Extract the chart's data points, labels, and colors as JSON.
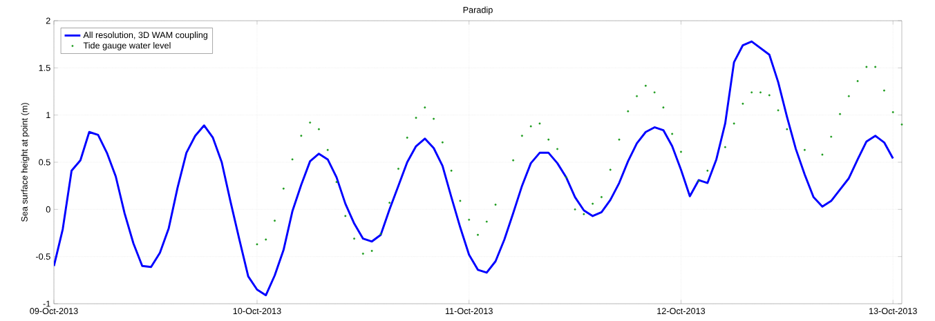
{
  "chart_data": {
    "type": "line",
    "title": "Paradip",
    "ylabel": "Sea surface height at point (m)",
    "x": [
      "2013-10-09T01:00",
      "2013-10-09T02:00",
      "2013-10-09T03:00",
      "2013-10-09T04:00",
      "2013-10-09T05:00",
      "2013-10-09T06:00",
      "2013-10-09T07:00",
      "2013-10-09T08:00",
      "2013-10-09T09:00",
      "2013-10-09T10:00",
      "2013-10-09T11:00",
      "2013-10-09T12:00",
      "2013-10-09T13:00",
      "2013-10-09T14:00",
      "2013-10-09T15:00",
      "2013-10-09T16:00",
      "2013-10-09T17:00",
      "2013-10-09T18:00",
      "2013-10-09T19:00",
      "2013-10-09T20:00",
      "2013-10-09T21:00",
      "2013-10-09T22:00",
      "2013-10-09T23:00",
      "2013-10-10T00:00",
      "2013-10-10T01:00",
      "2013-10-10T02:00",
      "2013-10-10T03:00",
      "2013-10-10T04:00",
      "2013-10-10T05:00",
      "2013-10-10T06:00",
      "2013-10-10T07:00",
      "2013-10-10T08:00",
      "2013-10-10T09:00",
      "2013-10-10T10:00",
      "2013-10-10T11:00",
      "2013-10-10T12:00",
      "2013-10-10T13:00",
      "2013-10-10T14:00",
      "2013-10-10T15:00",
      "2013-10-10T16:00",
      "2013-10-10T17:00",
      "2013-10-10T18:00",
      "2013-10-10T19:00",
      "2013-10-10T20:00",
      "2013-10-10T21:00",
      "2013-10-10T22:00",
      "2013-10-10T23:00",
      "2013-10-11T00:00",
      "2013-10-11T01:00",
      "2013-10-11T02:00",
      "2013-10-11T03:00",
      "2013-10-11T04:00",
      "2013-10-11T05:00",
      "2013-10-11T06:00",
      "2013-10-11T07:00",
      "2013-10-11T08:00",
      "2013-10-11T09:00",
      "2013-10-11T10:00",
      "2013-10-11T11:00",
      "2013-10-11T12:00",
      "2013-10-11T13:00",
      "2013-10-11T14:00",
      "2013-10-11T15:00",
      "2013-10-11T16:00",
      "2013-10-11T17:00",
      "2013-10-11T18:00",
      "2013-10-11T19:00",
      "2013-10-11T20:00",
      "2013-10-11T21:00",
      "2013-10-11T22:00",
      "2013-10-11T23:00",
      "2013-10-12T00:00",
      "2013-10-12T01:00",
      "2013-10-12T02:00",
      "2013-10-12T03:00",
      "2013-10-12T04:00",
      "2013-10-12T05:00",
      "2013-10-12T06:00",
      "2013-10-12T07:00",
      "2013-10-12T08:00",
      "2013-10-12T09:00",
      "2013-10-12T10:00",
      "2013-10-12T11:00",
      "2013-10-12T12:00",
      "2013-10-12T13:00",
      "2013-10-12T14:00",
      "2013-10-12T15:00",
      "2013-10-12T16:00",
      "2013-10-12T17:00",
      "2013-10-12T18:00",
      "2013-10-12T19:00",
      "2013-10-12T20:00",
      "2013-10-12T21:00",
      "2013-10-12T22:00",
      "2013-10-12T23:00",
      "2013-10-13T00:00",
      "2013-10-13T01:00"
    ],
    "series": [
      {
        "name": "All resolution, 3D WAM coupling",
        "color": "#0000ff",
        "marker": "none",
        "line_style": "solid",
        "values": [
          -0.6,
          -0.21,
          0.41,
          0.52,
          0.82,
          0.79,
          0.6,
          0.35,
          -0.04,
          -0.36,
          -0.6,
          -0.61,
          -0.46,
          -0.2,
          0.23,
          0.6,
          0.78,
          0.89,
          0.76,
          0.5,
          0.08,
          -0.32,
          -0.71,
          -0.85,
          -0.91,
          -0.7,
          -0.43,
          -0.02,
          0.26,
          0.51,
          0.59,
          0.53,
          0.34,
          0.06,
          -0.15,
          -0.31,
          -0.34,
          -0.27,
          0.0,
          0.25,
          0.5,
          0.67,
          0.75,
          0.65,
          0.46,
          0.13,
          -0.19,
          -0.48,
          -0.64,
          -0.67,
          -0.55,
          -0.32,
          -0.04,
          0.25,
          0.49,
          0.6,
          0.6,
          0.49,
          0.34,
          0.13,
          -0.01,
          -0.07,
          -0.03,
          0.1,
          0.28,
          0.51,
          0.7,
          0.82,
          0.87,
          0.84,
          0.67,
          0.42,
          0.14,
          0.31,
          0.28,
          0.53,
          0.91,
          1.56,
          1.74,
          1.78,
          1.71,
          1.64,
          1.35,
          0.98,
          0.64,
          0.37,
          0.13,
          0.03,
          0.09,
          0.21,
          0.33,
          0.53,
          0.72,
          0.78,
          0.71,
          0.54,
          null
        ]
      },
      {
        "name": "Tide gauge water level",
        "type": "scatter",
        "color": "#1a9a1a",
        "marker": "circle",
        "values": [
          null,
          null,
          null,
          null,
          null,
          null,
          null,
          null,
          null,
          null,
          null,
          null,
          null,
          null,
          null,
          null,
          null,
          null,
          null,
          null,
          null,
          null,
          null,
          -0.37,
          -0.32,
          -0.12,
          0.22,
          0.53,
          0.78,
          0.92,
          0.85,
          0.63,
          0.29,
          -0.07,
          -0.31,
          -0.47,
          -0.44,
          -0.26,
          0.07,
          0.43,
          0.76,
          0.97,
          1.08,
          0.96,
          0.71,
          0.41,
          0.09,
          -0.11,
          -0.27,
          -0.13,
          0.05,
          null,
          0.52,
          0.78,
          0.88,
          0.91,
          0.74,
          0.64,
          0.34,
          0.0,
          -0.05,
          0.06,
          0.13,
          0.42,
          0.74,
          1.04,
          1.2,
          1.31,
          1.24,
          1.08,
          0.8,
          0.61,
          null,
          0.3,
          0.41,
          null,
          0.66,
          0.91,
          1.12,
          1.24,
          1.24,
          1.21,
          1.05,
          0.85,
          null,
          0.63,
          null,
          0.58,
          0.77,
          1.01,
          1.2,
          1.36,
          1.51,
          1.51,
          1.26,
          1.03,
          0.9
        ]
      }
    ],
    "xlim": [
      "2013-10-09T01:00",
      "2013-10-13T01:00"
    ],
    "xticks": [
      {
        "value": "2013-10-09T01:00",
        "label": "09-Oct-2013"
      },
      {
        "value": "2013-10-10",
        "label": "10-Oct-2013"
      },
      {
        "value": "2013-10-11",
        "label": "11-Oct-2013"
      },
      {
        "value": "2013-10-12",
        "label": "12-Oct-2013"
      },
      {
        "value": "2013-10-13",
        "label": "13-Oct-2013"
      }
    ],
    "ylim": [
      -1,
      2
    ],
    "yticks": [
      -1,
      -0.5,
      0,
      0.5,
      1,
      1.5,
      2
    ],
    "grid": true,
    "legend": "top left"
  }
}
